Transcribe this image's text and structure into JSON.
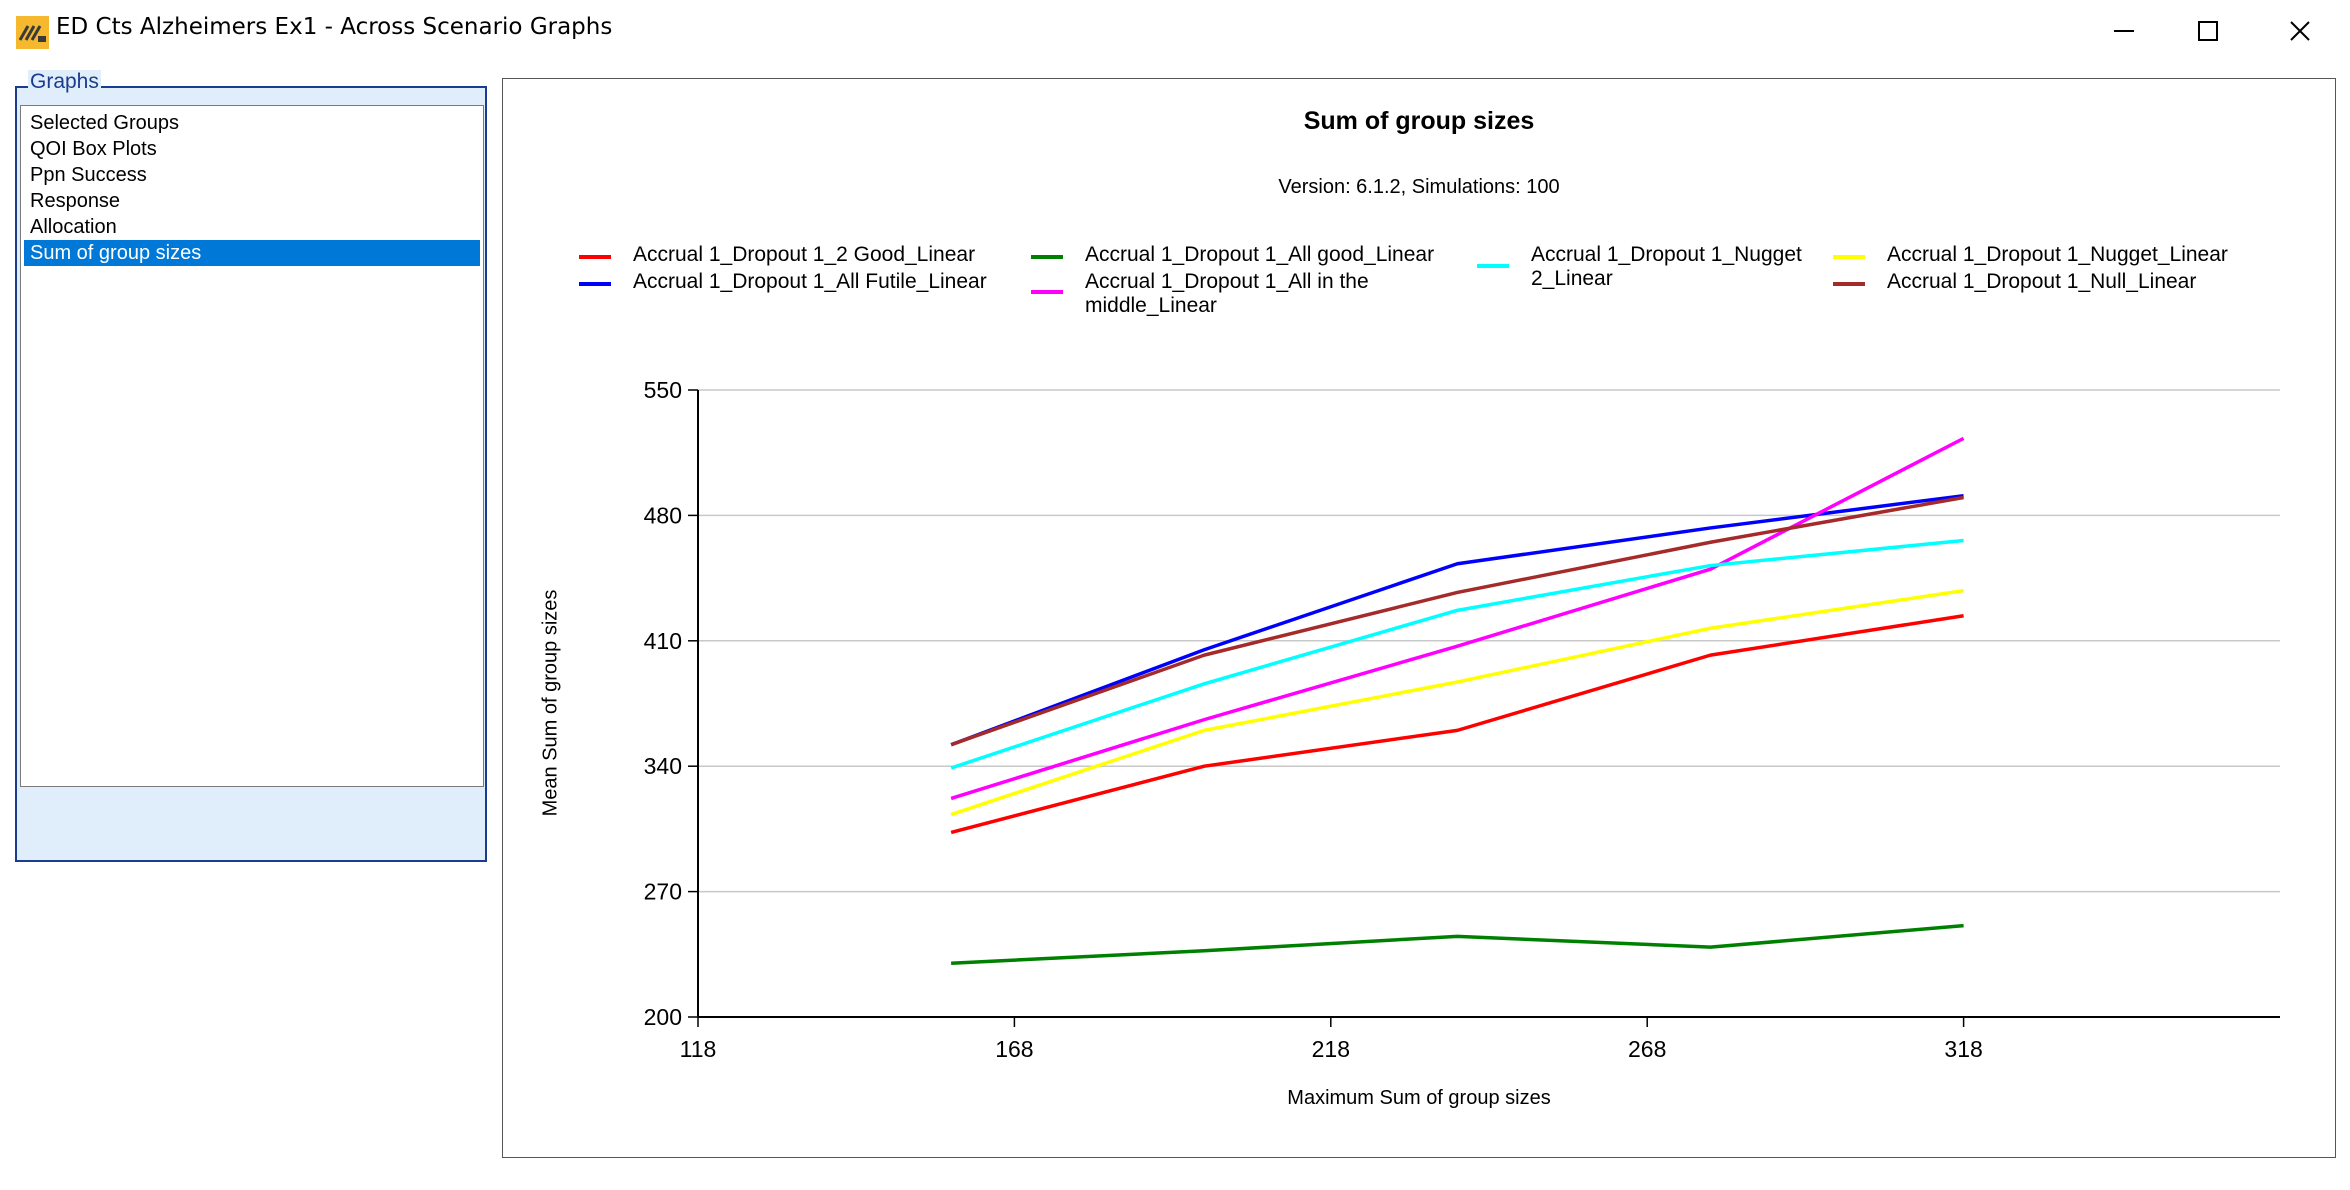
{
  "window": {
    "title": "ED Cts Alzheimers Ex1 - Across Scenario Graphs",
    "controls": [
      "minimize-icon",
      "maximize-icon",
      "close-icon"
    ]
  },
  "sidebar": {
    "group_label": "Graphs",
    "items": [
      {
        "label": "Selected Groups",
        "selected": false
      },
      {
        "label": "QOI Box Plots",
        "selected": false
      },
      {
        "label": "Ppn Success",
        "selected": false
      },
      {
        "label": "Response",
        "selected": false
      },
      {
        "label": "Allocation",
        "selected": false
      },
      {
        "label": "Sum of group sizes",
        "selected": true
      }
    ]
  },
  "chart_data": {
    "type": "line",
    "title": "Sum of group sizes",
    "subtitle": "Version: 6.1.2, Simulations: 100",
    "xlabel": "Maximum Sum of group sizes",
    "ylabel": "Mean Sum of group sizes",
    "xlim": [
      118,
      368
    ],
    "ylim": [
      200,
      550
    ],
    "xticks": [
      118,
      168,
      218,
      268,
      318
    ],
    "yticks": [
      200,
      270,
      340,
      410,
      480,
      550
    ],
    "grid": "horizontal",
    "legend_placement": "top",
    "x": [
      158,
      198,
      238,
      278,
      318
    ],
    "series": [
      {
        "name": "Accrual 1_Dropout 1_2 Good_Linear",
        "color": "#ff0000",
        "values": [
          303,
          340,
          360,
          402,
          424
        ]
      },
      {
        "name": "Accrual 1_Dropout 1_All Futile_Linear",
        "color": "#0000ff",
        "values": [
          352,
          405,
          453,
          473,
          491
        ]
      },
      {
        "name": "Accrual 1_Dropout 1_All good_Linear",
        "color": "#008000",
        "values": [
          230,
          237,
          245,
          239,
          251
        ]
      },
      {
        "name": "Accrual 1_Dropout 1_All in the middle_Linear",
        "color": "#ff00ff",
        "values": [
          322,
          366,
          407,
          450,
          523
        ]
      },
      {
        "name": "Accrual 1_Dropout 1_Nugget 2_Linear",
        "color": "#00ffff",
        "values": [
          339,
          386,
          427,
          452,
          466
        ]
      },
      {
        "name": "Accrual 1_Dropout 1_Nugget_Linear",
        "color": "#ffff00",
        "values": [
          313,
          360,
          387,
          417,
          438
        ]
      },
      {
        "name": "Accrual 1_Dropout 1_Null_Linear",
        "color": "#a52a2a",
        "values": [
          352,
          402,
          437,
          465,
          490
        ]
      }
    ]
  }
}
